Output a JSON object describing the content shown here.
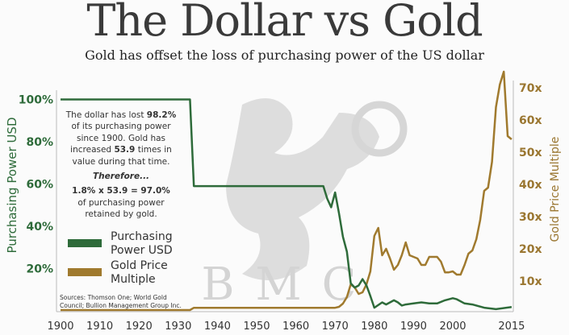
{
  "header": {
    "title": "The Dollar vs Gold",
    "subtitle": "Gold has offset the loss of purchasing power of the US dollar"
  },
  "watermark": {
    "letters": [
      "B",
      "M",
      "C"
    ]
  },
  "annotation": {
    "lines": [
      [
        {
          "t": "The dollar has lost ",
          "b": false
        },
        {
          "t": "98.2%",
          "b": true
        }
      ],
      [
        {
          "t": "of its purchasing power",
          "b": false
        }
      ],
      [
        {
          "t": "since 1900.  Gold has",
          "b": false
        }
      ],
      [
        {
          "t": "increased ",
          "b": false
        },
        {
          "t": "53.9",
          "b": true
        },
        {
          "t": " times in",
          "b": false
        }
      ],
      [
        {
          "t": "value during that time.",
          "b": false
        }
      ],
      [
        {
          "t": "Therefore...",
          "b": true,
          "i": true
        }
      ],
      [
        {
          "t": "1.8% x 53.9 = 97.0%",
          "b": true
        }
      ],
      [
        {
          "t": "of purchasing power",
          "b": false
        }
      ],
      [
        {
          "t": "retained by gold.",
          "b": false
        }
      ]
    ],
    "sources": [
      "Sources: Thomson One; World Gold",
      "Council; Bullion Management Group Inc."
    ]
  },
  "chart_data": {
    "type": "line",
    "title": "The Dollar vs Gold",
    "xlabel": "",
    "ylabel": "Purchasing Power USD",
    "y2label": "Gold Price Multiple",
    "xlim": [
      1900,
      2015
    ],
    "ylim": [
      0,
      100
    ],
    "y2lim": [
      0,
      80
    ],
    "x_ticks": [
      1900,
      1910,
      1920,
      1930,
      1940,
      1950,
      1960,
      1970,
      1980,
      1990,
      2000,
      2015
    ],
    "y_ticks": [
      "20%",
      "40%",
      "60%",
      "80%",
      "100%"
    ],
    "y_tick_values": [
      20,
      40,
      60,
      80,
      100
    ],
    "y2_ticks": [
      "10x",
      "20x",
      "30x",
      "40x",
      "50x",
      "60x",
      "70x"
    ],
    "y2_tick_values": [
      10,
      20,
      30,
      40,
      50,
      60,
      70
    ],
    "legend_position": "left",
    "colors": {
      "usd": "#2e6b3a",
      "gold": "#a07a2e"
    },
    "series": [
      {
        "name": "Purchasing Power USD",
        "axis": "left",
        "x": [
          1900,
          1933,
          1934,
          1967,
          1968,
          1969,
          1970,
          1971,
          1972,
          1973,
          1974,
          1975,
          1976,
          1977,
          1978,
          1979,
          1980,
          1982,
          1983,
          1985,
          1986,
          1987,
          1988,
          1990,
          1992,
          1994,
          1996,
          1998,
          2000,
          2001,
          2003,
          2005,
          2008,
          2011,
          2015
        ],
        "values": [
          100,
          100,
          59,
          59,
          53,
          49,
          56,
          46,
          35,
          28,
          13,
          11,
          12,
          15,
          12,
          7,
          1.5,
          4,
          3,
          5,
          4,
          2.5,
          3,
          3.5,
          4,
          3.5,
          3.5,
          5,
          6,
          5.5,
          3.5,
          3,
          1.5,
          0.8,
          1.8
        ]
      },
      {
        "name": "Gold Price Multiple",
        "axis": "right",
        "x": [
          1900,
          1933,
          1934,
          1970,
          1971,
          1972,
          1973,
          1974,
          1975,
          1976,
          1977,
          1978,
          1979,
          1980,
          1981,
          1982,
          1983,
          1984,
          1985,
          1986,
          1987,
          1988,
          1989,
          1990,
          1991,
          1992,
          1993,
          1994,
          1995,
          1996,
          1997,
          1998,
          1999,
          2000,
          2001,
          2002,
          2003,
          2004,
          2005,
          2006,
          2007,
          2008,
          2009,
          2010,
          2011,
          2012,
          2013,
          2014,
          2015
        ],
        "values": [
          1,
          1,
          1.7,
          1.7,
          2,
          3,
          5,
          9,
          8,
          6,
          6.5,
          9,
          13,
          24,
          26.5,
          18,
          20,
          17,
          13.5,
          15,
          18,
          22,
          18,
          17.5,
          17,
          15,
          15,
          17.5,
          17.5,
          17.5,
          16,
          12.7,
          12.7,
          13,
          12,
          12,
          15,
          18.5,
          19.5,
          23,
          29,
          38,
          39,
          47,
          64,
          71,
          75,
          55,
          54
        ]
      }
    ],
    "legend": [
      "Purchasing Power USD",
      "Gold Price Multiple"
    ],
    "legend_lines": [
      [
        "Purchasing",
        "Power USD"
      ],
      [
        "Gold Price",
        "Multiple"
      ]
    ]
  }
}
